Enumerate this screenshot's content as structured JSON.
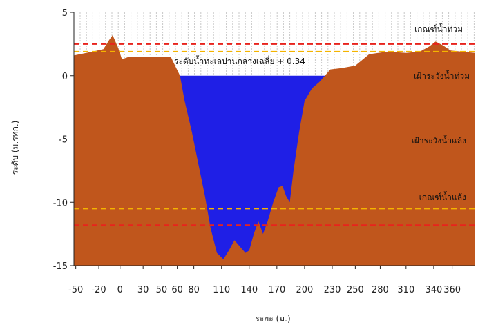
{
  "chart_data": {
    "type": "area",
    "title": "",
    "xlabel": "ระยะ (ม.)",
    "ylabel": "ระดับ (ม.รทก.)",
    "xlim": [
      -50,
      385
    ],
    "ylim": [
      -15,
      5
    ],
    "y_ticks": [
      5,
      0,
      -5,
      -10,
      -15
    ],
    "x_ticks": [
      "-50",
      "-20",
      "0",
      "30",
      "50",
      "60",
      "80",
      "110",
      "140",
      "170",
      "200",
      "230",
      "250",
      "280",
      "310",
      "340",
      "360"
    ],
    "x_tick_values": [
      -48,
      -23,
      0,
      25,
      45,
      62,
      80,
      110,
      140,
      170,
      200,
      230,
      255,
      282,
      310,
      340,
      360
    ],
    "colors": {
      "ground": "#c0561c",
      "water": "#1f1fe6",
      "flood_line": "#e8231d",
      "low_line": "#f4b400",
      "grid": "#c8c8c8"
    },
    "ground_profile": {
      "x": [
        -50,
        -30,
        -18,
        -12,
        -8,
        -2,
        2,
        10,
        30,
        45,
        55,
        65,
        70,
        78,
        85,
        92,
        98,
        105,
        112,
        118,
        124,
        130,
        136,
        140,
        145,
        150,
        155,
        160,
        166,
        172,
        176,
        180,
        184,
        188,
        194,
        200,
        208,
        216,
        228,
        240,
        255,
        270,
        290,
        310,
        325,
        335,
        342,
        350,
        358,
        370,
        385
      ],
      "y": [
        1.6,
        1.9,
        2.1,
        2.8,
        3.2,
        2.2,
        1.3,
        1.5,
        1.5,
        1.5,
        1.5,
        0.0,
        -2.0,
        -4.5,
        -7.0,
        -9.5,
        -12.0,
        -14.0,
        -14.5,
        -13.8,
        -13.0,
        -13.5,
        -14.0,
        -13.8,
        -12.5,
        -11.5,
        -12.5,
        -11.5,
        -10.0,
        -8.8,
        -8.7,
        -9.5,
        -10.0,
        -7.5,
        -4.5,
        -2.0,
        -1.0,
        -0.5,
        0.5,
        0.6,
        0.8,
        1.7,
        1.9,
        1.8,
        1.9,
        2.3,
        2.7,
        2.4,
        2.0,
        1.9,
        1.8
      ]
    },
    "water_level": 0.0,
    "reference_lines": [
      {
        "y": 2.5,
        "color": "#e8231d",
        "style": "dashed"
      },
      {
        "y": 1.9,
        "color": "#f4b400",
        "style": "dashed"
      },
      {
        "y": -10.5,
        "color": "#f4b400",
        "style": "dashed"
      },
      {
        "y": -11.8,
        "color": "#e8231d",
        "style": "dashed"
      }
    ],
    "annotations": [
      {
        "text": "ระดับน้ำทะเลปานกลางเฉลี่ย + 0.34"
      },
      {
        "text": "เกณฑ์น้ำท่วม"
      },
      {
        "text": "เฝ้าระวังน้ำท่วม"
      },
      {
        "text": "เฝ้าระวังน้ำแล้ง"
      },
      {
        "text": "เกณฑ์น้ำแล้ง"
      }
    ],
    "grid": "vertical dashed, above ground",
    "legend": "none"
  }
}
